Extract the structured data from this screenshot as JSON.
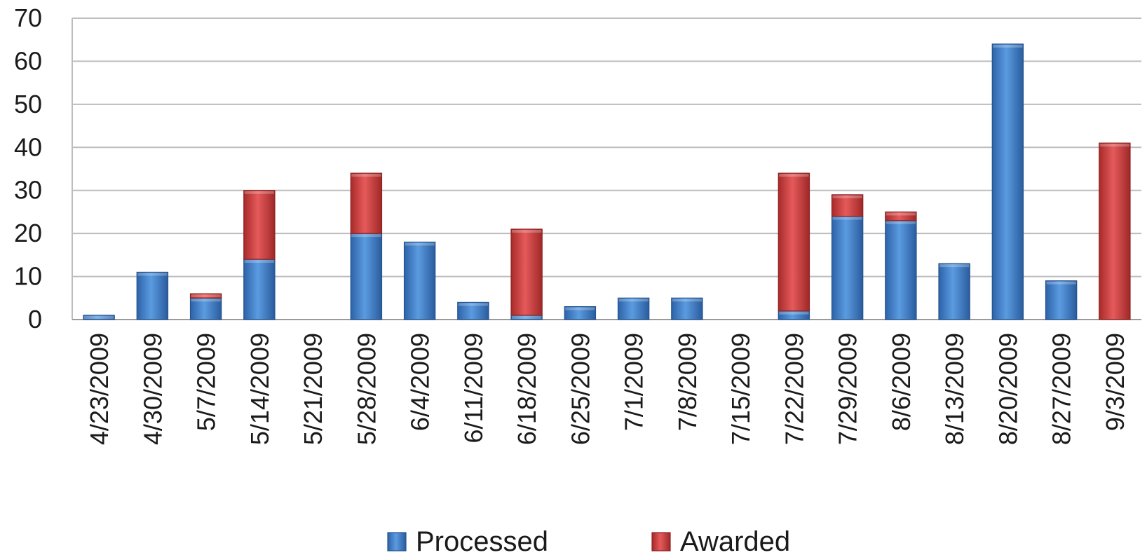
{
  "chart_data": {
    "type": "bar",
    "stacked": true,
    "title": "",
    "xlabel": "",
    "ylabel": "",
    "ylim": [
      0,
      70
    ],
    "yticks": [
      0,
      10,
      20,
      30,
      40,
      50,
      60,
      70
    ],
    "ytick_labels": [
      "0",
      "10",
      "20",
      "30",
      "40",
      "50",
      "60",
      "70"
    ],
    "grid": true,
    "legend_position": "bottom",
    "categories": [
      "4/23/2009",
      "4/30/2009",
      "5/7/2009",
      "5/14/2009",
      "5/21/2009",
      "5/28/2009",
      "6/4/2009",
      "6/11/2009",
      "6/18/2009",
      "6/25/2009",
      "7/1/2009",
      "7/8/2009",
      "7/15/2009",
      "7/22/2009",
      "7/29/2009",
      "8/6/2009",
      "8/13/2009",
      "8/20/2009",
      "8/27/2009",
      "9/3/2009"
    ],
    "series": [
      {
        "name": "Processed",
        "color": "#3b7fd0",
        "values": [
          1,
          11,
          5,
          14,
          0,
          20,
          18,
          4,
          1,
          3,
          5,
          5,
          0,
          2,
          24,
          23,
          13,
          64,
          9,
          0
        ]
      },
      {
        "name": "Awarded",
        "color": "#d43f3f",
        "values": [
          0,
          0,
          1,
          16,
          0,
          14,
          0,
          0,
          20,
          0,
          0,
          0,
          0,
          32,
          5,
          2,
          0,
          0,
          0,
          41
        ]
      }
    ]
  }
}
